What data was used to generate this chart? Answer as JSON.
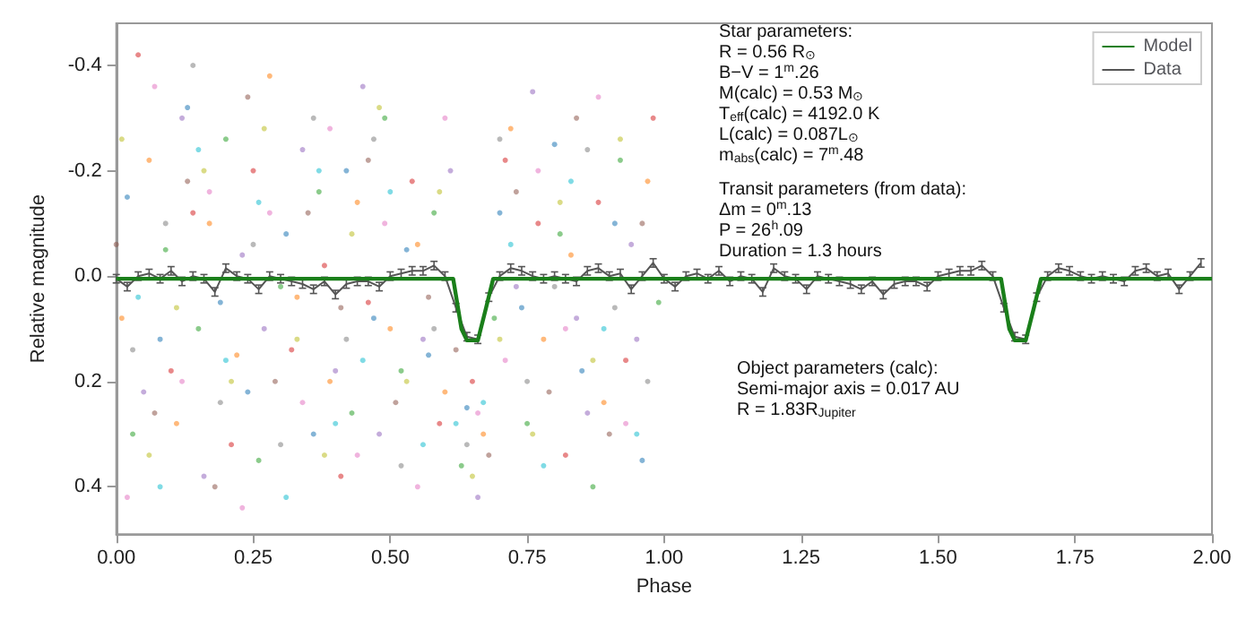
{
  "chart_data": {
    "type": "scatter",
    "xlabel": "Phase",
    "ylabel": "Relative magnitude",
    "xlim": [
      0,
      2
    ],
    "xticks": [
      {
        "value": 0,
        "label": "0.00"
      },
      {
        "value": 0.25,
        "label": "0.25"
      },
      {
        "value": 0.5,
        "label": "0.50"
      },
      {
        "value": 0.75,
        "label": "0.75"
      },
      {
        "value": 1,
        "label": "1.00"
      },
      {
        "value": 1.25,
        "label": "1.25"
      },
      {
        "value": 1.5,
        "label": "1.50"
      },
      {
        "value": 1.75,
        "label": "1.75"
      },
      {
        "value": 2,
        "label": "2.00"
      }
    ],
    "ylim": [
      0.49,
      -0.48
    ],
    "yticks": [
      -0.4,
      -0.2,
      {
        "value": 0,
        "label": "0.0"
      },
      0.2,
      0.4
    ],
    "grid": false,
    "legend": "top right",
    "marker": "circle",
    "annotations": [
      "Star parameters:\nR = 0.56 R$_{⊙}$\nB−V = 1$^{m}$.26\nM(calc) = 0.53 M$_{⊙}$\nT$_{eff}$(calc) = 4192.0 K\nL(calc) = 0.087L$_{⊙}$\nm$_{abs}$(calc) = 7$^{m}$.48",
      "Transit parameters (from data):\nΔm = 0$^{m}$.13\nP = 26$^{h}$.09\nDuration = 1.3 hours",
      "Object parameters (calc):\nSemi-major axis = 0.017 AU\nR = 1.83R$_{Jupiter}$"
    ],
    "series": [
      {
        "color": "#1f77b4",
        "x": [
          0.02,
          0.08,
          0.13,
          0.19,
          0.24,
          0.31,
          0.36,
          0.42,
          0.47,
          0.53,
          0.57,
          0.64,
          0.7,
          0.74,
          0.8,
          0.85,
          0.91,
          0.96
        ],
        "values": [
          -0.15,
          0.12,
          -0.32,
          0.05,
          0.22,
          -0.08,
          0.3,
          -0.2,
          0.08,
          -0.05,
          0.15,
          0.25,
          -0.12,
          0.06,
          -0.25,
          0.18,
          -0.1,
          0.35
        ]
      },
      {
        "color": "#ff7f0e",
        "x": [
          0.01,
          0.06,
          0.11,
          0.17,
          0.22,
          0.28,
          0.33,
          0.39,
          0.44,
          0.5,
          0.55,
          0.6,
          0.67,
          0.72,
          0.78,
          0.83,
          0.89,
          0.97
        ],
        "values": [
          0.08,
          -0.22,
          0.28,
          -0.1,
          0.15,
          -0.38,
          0.04,
          0.2,
          -0.14,
          0.1,
          -0.06,
          0.22,
          0.3,
          -0.28,
          0.12,
          -0.04,
          0.24,
          -0.18
        ]
      },
      {
        "color": "#2ca02c",
        "x": [
          0.03,
          0.09,
          0.15,
          0.2,
          0.26,
          0.3,
          0.37,
          0.43,
          0.49,
          0.52,
          0.58,
          0.63,
          0.69,
          0.75,
          0.81,
          0.87,
          0.92,
          0.99
        ],
        "values": [
          0.3,
          -0.05,
          0.1,
          -0.26,
          0.35,
          0.02,
          -0.16,
          0.26,
          -0.3,
          0.18,
          -0.12,
          0.36,
          0.08,
          0.28,
          -0.08,
          0.4,
          -0.22,
          0.05
        ]
      },
      {
        "color": "#d62728",
        "x": [
          0.04,
          0.1,
          0.14,
          0.21,
          0.25,
          0.32,
          0.38,
          0.41,
          0.46,
          0.54,
          0.59,
          0.65,
          0.71,
          0.77,
          0.82,
          0.88,
          0.93,
          0.98
        ],
        "values": [
          -0.42,
          0.18,
          -0.12,
          0.32,
          -0.2,
          0.14,
          -0.02,
          0.38,
          0.05,
          -0.18,
          0.28,
          0.2,
          -0.22,
          -0.1,
          0.34,
          -0.14,
          0.16,
          -0.3
        ]
      },
      {
        "color": "#9467bd",
        "x": [
          0.05,
          0.12,
          0.16,
          0.23,
          0.27,
          0.34,
          0.4,
          0.45,
          0.48,
          0.56,
          0.61,
          0.66,
          0.73,
          0.76,
          0.84,
          0.86,
          0.94,
          0.95
        ],
        "values": [
          0.22,
          -0.3,
          0.38,
          -0.04,
          0.1,
          -0.24,
          0.18,
          -0.36,
          0.3,
          0.12,
          -0.2,
          0.42,
          0.02,
          -0.35,
          0.08,
          0.26,
          -0.06,
          0.12
        ]
      },
      {
        "color": "#8c564b",
        "x": [
          0.0,
          0.07,
          0.13,
          0.18,
          0.24,
          0.29,
          0.35,
          0.41,
          0.46,
          0.51,
          0.57,
          0.62,
          0.68,
          0.73,
          0.79,
          0.84,
          0.9,
          0.96
        ],
        "values": [
          -0.06,
          0.26,
          -0.18,
          0.4,
          -0.34,
          0.2,
          -0.12,
          0.06,
          -0.22,
          0.24,
          0.04,
          0.14,
          0.34,
          -0.16,
          0.22,
          -0.3,
          0.3,
          -0.1
        ]
      },
      {
        "color": "#e377c2",
        "x": [
          0.02,
          0.07,
          0.12,
          0.17,
          0.23,
          0.28,
          0.34,
          0.39,
          0.44,
          0.49,
          0.55,
          0.6,
          0.66,
          0.71,
          0.77,
          0.82,
          0.88,
          0.93
        ],
        "values": [
          0.42,
          -0.36,
          0.2,
          -0.16,
          0.44,
          -0.12,
          0.24,
          -0.28,
          0.34,
          -0.1,
          0.4,
          -0.3,
          0.26,
          0.16,
          -0.2,
          0.1,
          -0.34,
          0.28
        ]
      },
      {
        "color": "#7f7f7f",
        "x": [
          0.03,
          0.09,
          0.14,
          0.19,
          0.25,
          0.3,
          0.36,
          0.42,
          0.47,
          0.52,
          0.58,
          0.64,
          0.7,
          0.75,
          0.8,
          0.86,
          0.91,
          0.97
        ],
        "values": [
          0.14,
          -0.1,
          -0.4,
          0.24,
          -0.06,
          0.32,
          -0.3,
          0.12,
          -0.26,
          0.36,
          0.1,
          0.32,
          -0.26,
          0.2,
          0.02,
          -0.24,
          0.06,
          0.2
        ]
      },
      {
        "color": "#bcbd22",
        "x": [
          0.01,
          0.06,
          0.11,
          0.16,
          0.21,
          0.27,
          0.33,
          0.38,
          0.43,
          0.48,
          0.53,
          0.59,
          0.65,
          0.7,
          0.76,
          0.81,
          0.87,
          0.92
        ],
        "values": [
          -0.26,
          0.34,
          0.06,
          -0.2,
          0.2,
          -0.28,
          0.12,
          0.34,
          -0.08,
          -0.32,
          0.2,
          -0.16,
          0.38,
          0.12,
          0.3,
          -0.14,
          0.16,
          -0.26
        ]
      },
      {
        "color": "#17becf",
        "x": [
          0.04,
          0.08,
          0.15,
          0.2,
          0.26,
          0.31,
          0.37,
          0.4,
          0.45,
          0.5,
          0.56,
          0.62,
          0.67,
          0.72,
          0.78,
          0.83,
          0.89,
          0.95
        ],
        "values": [
          0.04,
          0.4,
          -0.24,
          0.16,
          -0.14,
          0.42,
          -0.2,
          0.28,
          0.16,
          -0.16,
          0.32,
          0.28,
          0.24,
          -0.06,
          0.36,
          -0.18,
          0.1,
          0.3
        ]
      },
      {
        "name": "Data",
        "type": "line",
        "marker": "none",
        "color": "#555555",
        "x": [
          0.0,
          0.02,
          0.04,
          0.06,
          0.08,
          0.1,
          0.12,
          0.14,
          0.16,
          0.18,
          0.2,
          0.22,
          0.24,
          0.26,
          0.28,
          0.3,
          0.32,
          0.34,
          0.36,
          0.38,
          0.4,
          0.42,
          0.44,
          0.46,
          0.48,
          0.5,
          0.52,
          0.54,
          0.56,
          0.58,
          0.6,
          0.62,
          0.64,
          0.66,
          0.68,
          0.7,
          0.72,
          0.74,
          0.76,
          0.78,
          0.8,
          0.82,
          0.84,
          0.86,
          0.88,
          0.9,
          0.92,
          0.94,
          0.96,
          0.98,
          1.0,
          1.02,
          1.04,
          1.06,
          1.08,
          1.1,
          1.12,
          1.14,
          1.16,
          1.18,
          1.2,
          1.22,
          1.24,
          1.26,
          1.28,
          1.3,
          1.32,
          1.34,
          1.36,
          1.38,
          1.4,
          1.42,
          1.44,
          1.46,
          1.48,
          1.5,
          1.52,
          1.54,
          1.56,
          1.58,
          1.6,
          1.62,
          1.64,
          1.66,
          1.68,
          1.7,
          1.72,
          1.74,
          1.76,
          1.78,
          1.8,
          1.82,
          1.84,
          1.86,
          1.88,
          1.9,
          1.92,
          1.94,
          1.96,
          1.98
        ],
        "values": [
          0.005,
          0.02,
          0.0,
          -0.005,
          0.005,
          -0.01,
          0.01,
          0.0,
          0.005,
          0.03,
          -0.015,
          0.0,
          0.005,
          0.025,
          0.0,
          0.005,
          0.01,
          0.015,
          0.025,
          0.01,
          0.035,
          0.015,
          0.01,
          0.01,
          0.02,
          0.0,
          -0.005,
          -0.01,
          -0.01,
          -0.02,
          0.0,
          0.06,
          0.115,
          0.12,
          0.04,
          0.0,
          -0.015,
          -0.01,
          0.0,
          0.005,
          0.0,
          0.005,
          0.01,
          -0.01,
          -0.015,
          0.0,
          -0.005,
          0.025,
          0.0,
          -0.025,
          0.005,
          0.02,
          0.0,
          -0.005,
          0.005,
          -0.01,
          0.01,
          0.0,
          0.005,
          0.03,
          -0.015,
          0.0,
          0.005,
          0.025,
          0.0,
          0.005,
          0.01,
          0.015,
          0.025,
          0.01,
          0.035,
          0.015,
          0.01,
          0.01,
          0.02,
          0.0,
          -0.005,
          -0.01,
          -0.01,
          -0.02,
          0.0,
          0.06,
          0.115,
          0.12,
          0.04,
          0.0,
          -0.015,
          -0.01,
          0.0,
          0.005,
          0.0,
          0.005,
          0.01,
          -0.01,
          -0.015,
          0.0,
          -0.005,
          0.025,
          0.0,
          -0.025
        ],
        "errors": [
          0.008,
          0.008,
          0.008,
          0.008,
          0.008,
          0.008,
          0.008,
          0.008,
          0.008,
          0.008,
          0.008,
          0.008,
          0.008,
          0.008,
          0.008,
          0.008,
          0.008,
          0.008,
          0.008,
          0.008,
          0.008,
          0.008,
          0.008,
          0.008,
          0.008,
          0.008,
          0.008,
          0.008,
          0.008,
          0.008,
          0.008,
          0.008,
          0.008,
          0.008,
          0.008,
          0.008,
          0.008,
          0.008,
          0.008,
          0.008,
          0.008,
          0.008,
          0.008,
          0.008,
          0.008,
          0.008,
          0.008,
          0.008,
          0.008,
          0.008,
          0.008,
          0.008,
          0.008,
          0.008,
          0.008,
          0.008,
          0.008,
          0.008,
          0.008,
          0.008,
          0.008,
          0.008,
          0.008,
          0.008,
          0.008,
          0.008,
          0.008,
          0.008,
          0.008,
          0.008,
          0.008,
          0.008,
          0.008,
          0.008,
          0.008,
          0.008,
          0.008,
          0.008,
          0.008,
          0.008,
          0.008,
          0.008,
          0.008,
          0.008,
          0.008,
          0.008,
          0.008,
          0.008,
          0.008,
          0.008,
          0.008,
          0.008,
          0.008,
          0.008,
          0.008,
          0.008,
          0.008,
          0.008,
          0.008,
          0.008
        ]
      },
      {
        "name": "Model",
        "type": "line",
        "marker": "none",
        "color": "#1a7f1a",
        "x": [
          0,
          0.615,
          0.63,
          0.64,
          0.66,
          0.675,
          0.688,
          1.615,
          1.63,
          1.64,
          1.66,
          1.675,
          1.688,
          2
        ],
        "values": [
          0.005,
          0.005,
          0.1,
          0.122,
          0.122,
          0.06,
          0.005,
          0.005,
          0.1,
          0.122,
          0.122,
          0.06,
          0.005,
          0.005
        ]
      }
    ]
  }
}
